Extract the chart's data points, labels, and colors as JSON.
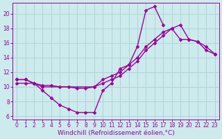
{
  "bg_color": "#cdeaed",
  "grid_color": "#afd4d8",
  "line_color": "#990099",
  "marker": "D",
  "marker_size": 2.5,
  "line_width": 1.0,
  "xlabel": "Windchill (Refroidissement éolien,°C)",
  "xlabel_fontsize": 6.5,
  "tick_fontsize": 5.5,
  "xlim": [
    -0.5,
    23.5
  ],
  "ylim": [
    5.5,
    21.5
  ],
  "xticks": [
    0,
    1,
    2,
    3,
    4,
    5,
    6,
    7,
    8,
    9,
    10,
    11,
    12,
    13,
    14,
    15,
    16,
    17,
    18,
    19,
    20,
    21,
    22,
    23
  ],
  "yticks": [
    6,
    8,
    10,
    12,
    14,
    16,
    18,
    20
  ],
  "series": [
    {
      "x": [
        0,
        1,
        2,
        3,
        4,
        5,
        6,
        7,
        8,
        9,
        10,
        11,
        12,
        13,
        14,
        15,
        16,
        17
      ],
      "y": [
        11,
        11,
        10.5,
        9.5,
        8.5,
        7.5,
        7.0,
        6.5,
        6.5,
        6.5,
        9.5,
        10.5,
        12.5,
        13.0,
        15.5,
        20.5,
        21.0,
        18.5
      ]
    },
    {
      "x": [
        0,
        1,
        2,
        3,
        4,
        5,
        6,
        7,
        8,
        9,
        10,
        11,
        12,
        13,
        14,
        15,
        16,
        17,
        18,
        19,
        20,
        21,
        22,
        23
      ],
      "y": [
        10.5,
        10.5,
        10.5,
        10.2,
        10.2,
        10.0,
        10.0,
        9.8,
        9.8,
        10.0,
        11.0,
        11.5,
        12.0,
        13.0,
        14.0,
        15.5,
        16.5,
        17.5,
        18.0,
        16.5,
        16.5,
        16.2,
        15.5,
        14.5
      ]
    },
    {
      "x": [
        0,
        1,
        2,
        3,
        9,
        10,
        11,
        12,
        13,
        14,
        15,
        16,
        17,
        18,
        19,
        20,
        21,
        22,
        23
      ],
      "y": [
        11.0,
        11.0,
        10.5,
        10.0,
        10.0,
        10.5,
        11.0,
        11.5,
        12.5,
        13.5,
        15.0,
        16.0,
        17.0,
        18.0,
        18.5,
        16.5,
        16.2,
        15.0,
        14.5
      ]
    }
  ]
}
